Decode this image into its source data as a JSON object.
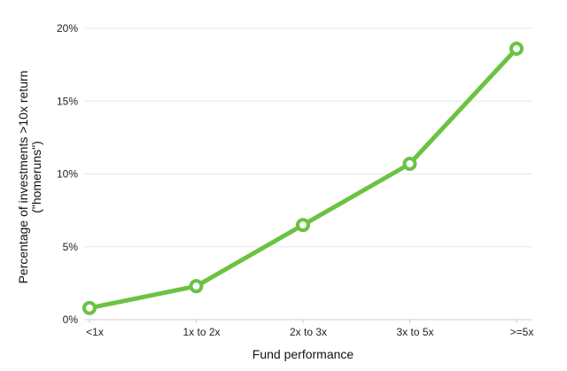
{
  "chart_data": {
    "type": "line",
    "title": "",
    "xlabel": "Fund performance",
    "ylabel_lines": [
      "Percentage of investments >10x return",
      "(\"homeruns\")"
    ],
    "categories": [
      "<1x",
      "1x to 2x",
      "2x to 3x",
      "3x to 5x",
      ">=5x"
    ],
    "values": [
      0.8,
      2.3,
      6.5,
      10.7,
      18.6
    ],
    "ylim": [
      0,
      20
    ],
    "yticks": [
      0,
      5,
      10,
      15,
      20
    ],
    "ytick_labels": [
      "0%",
      "5%",
      "10%",
      "15%",
      "20%"
    ],
    "grid": true,
    "legend": "none",
    "colors": {
      "line": "#6cc241",
      "marker_fill": "#ffffff",
      "grid": "#e6e6e6",
      "axis": "#cccccc"
    }
  }
}
